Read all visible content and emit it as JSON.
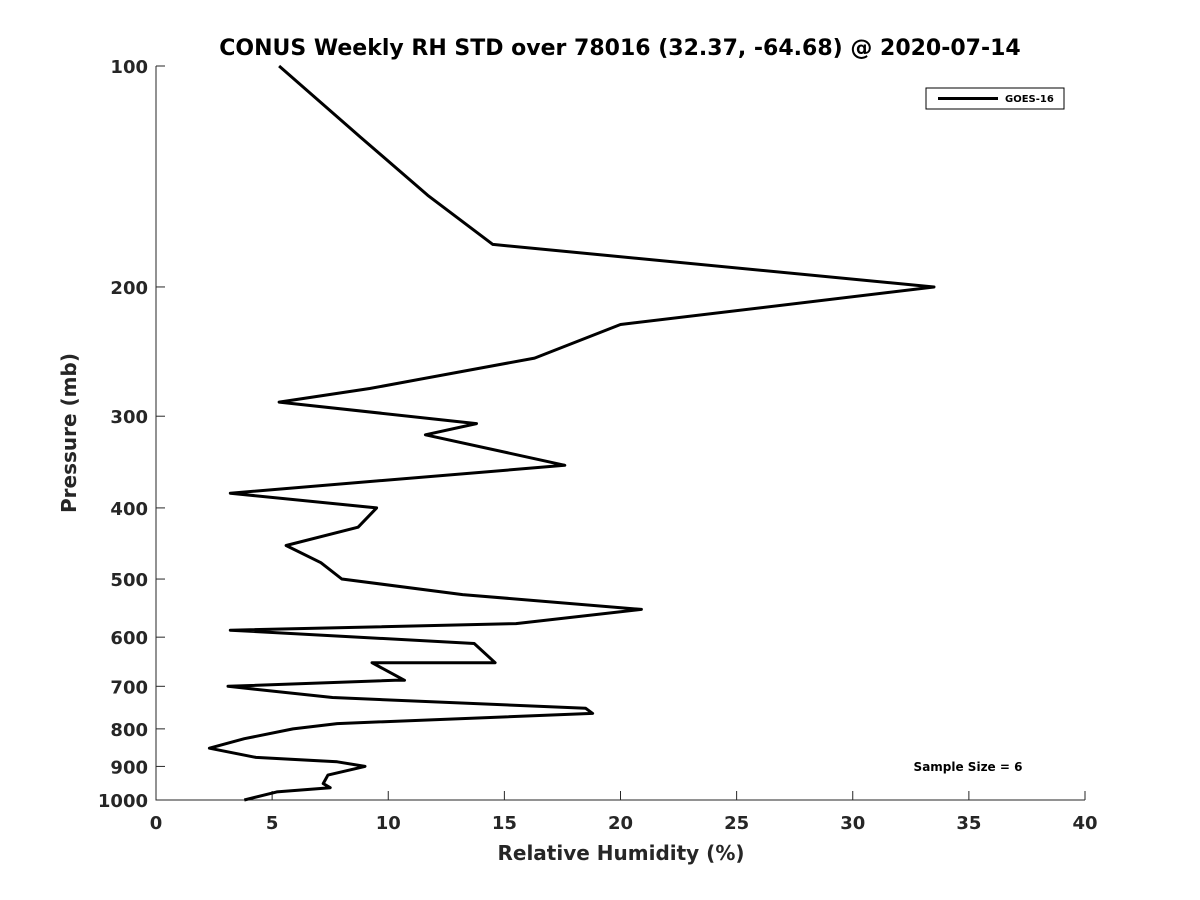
{
  "chart_data": {
    "type": "line",
    "title": "CONUS Weekly RH STD over 78016 (32.37, -64.68) @ 2020-07-14",
    "xlabel": "Relative Humidity (%)",
    "ylabel": "Pressure (mb)",
    "xlim": [
      0,
      40
    ],
    "ylim": [
      100,
      1000
    ],
    "y_scale": "log",
    "y_reversed": true,
    "x_ticks": [
      "0",
      "5",
      "10",
      "15",
      "20",
      "25",
      "30",
      "35",
      "40"
    ],
    "y_ticks": [
      "100",
      "200",
      "300",
      "400",
      "500",
      "600",
      "700",
      "800",
      "900",
      "1000"
    ],
    "grid": false,
    "legend": {
      "position": "top-right"
    },
    "annotation": "Sample Size = 6",
    "line_color": "#000000",
    "series": [
      {
        "name": "GOES-16",
        "x": [
          5.3,
          8.8,
          11.7,
          14.5,
          33.5,
          20.0,
          16.3,
          9.2,
          5.3,
          13.8,
          11.6,
          17.6,
          3.2,
          9.5,
          8.7,
          5.6,
          7.1,
          8.0,
          13.2,
          20.9,
          15.5,
          3.2,
          13.7,
          14.6,
          9.3,
          10.7,
          10.3,
          3.1,
          7.6,
          18.5,
          18.8,
          7.8,
          5.9,
          3.8,
          2.3,
          4.3,
          7.8,
          9.0,
          7.4,
          7.2,
          7.5,
          5.2,
          3.8
        ],
        "y": [
          100,
          125,
          150,
          175,
          200,
          225,
          250,
          275,
          287,
          307,
          318,
          350,
          382,
          400,
          425,
          450,
          475,
          500,
          525,
          550,
          575,
          587,
          612,
          650,
          650,
          687,
          687,
          700,
          725,
          750,
          762,
          787,
          800,
          825,
          850,
          875,
          887,
          900,
          925,
          950,
          962,
          975,
          1000
        ]
      }
    ]
  }
}
